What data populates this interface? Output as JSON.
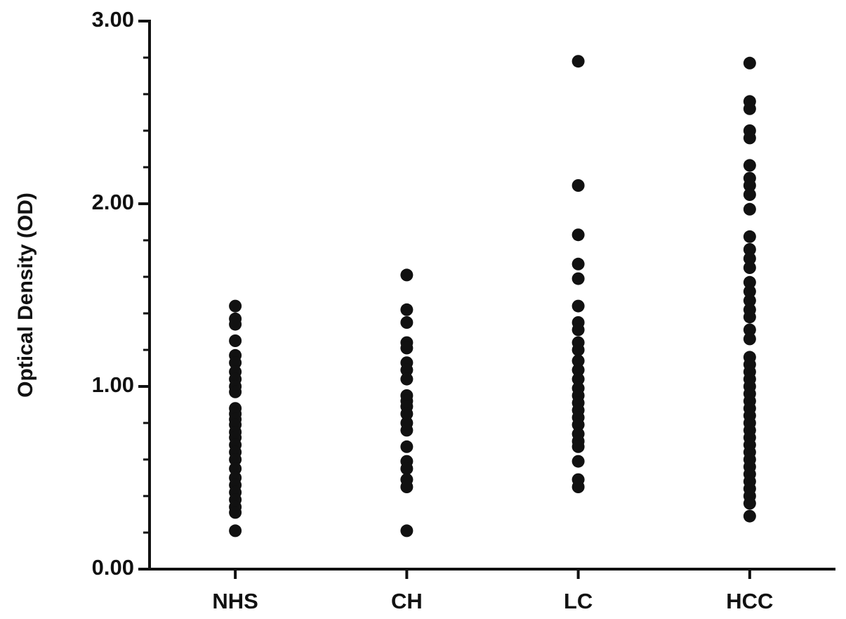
{
  "chart_data": {
    "type": "strip",
    "y_label": "Optical Density (OD)",
    "categories": [
      "NHS",
      "CH",
      "LC",
      "HCC"
    ],
    "values": [
      [
        1.44,
        1.37,
        1.34,
        1.25,
        1.17,
        1.13,
        1.08,
        1.04,
        1.0,
        0.97,
        0.88,
        0.85,
        0.82,
        0.79,
        0.75,
        0.72,
        0.68,
        0.64,
        0.6,
        0.55,
        0.5,
        0.46,
        0.42,
        0.38,
        0.34,
        0.31,
        0.21
      ],
      [
        1.61,
        1.42,
        1.35,
        1.24,
        1.21,
        1.13,
        1.09,
        1.04,
        0.95,
        0.92,
        0.89,
        0.85,
        0.8,
        0.76,
        0.67,
        0.59,
        0.55,
        0.49,
        0.45,
        0.21
      ],
      [
        2.78,
        2.1,
        1.83,
        1.67,
        1.59,
        1.44,
        1.35,
        1.31,
        1.24,
        1.2,
        1.14,
        1.09,
        1.04,
        0.99,
        0.95,
        0.91,
        0.87,
        0.83,
        0.79,
        0.74,
        0.7,
        0.67,
        0.59,
        0.49,
        0.45
      ],
      [
        2.77,
        2.56,
        2.52,
        2.4,
        2.36,
        2.21,
        2.14,
        2.1,
        2.05,
        1.97,
        1.82,
        1.75,
        1.7,
        1.65,
        1.57,
        1.52,
        1.47,
        1.42,
        1.38,
        1.31,
        1.26,
        1.16,
        1.12,
        1.08,
        1.04,
        1.0,
        0.96,
        0.92,
        0.88,
        0.84,
        0.8,
        0.76,
        0.72,
        0.68,
        0.64,
        0.6,
        0.56,
        0.52,
        0.48,
        0.44,
        0.4,
        0.36,
        0.29
      ]
    ],
    "color": "#111111",
    "ylim": [
      0,
      3
    ],
    "yticks": [
      {
        "value": 0,
        "label": "0.00"
      },
      {
        "value": 1,
        "label": "1.00"
      },
      {
        "value": 2,
        "label": "2.00"
      },
      {
        "value": 3,
        "label": "3.00"
      }
    ],
    "minor_yticks": [
      0.2,
      0.4,
      0.6,
      0.8,
      1.2,
      1.4,
      1.6,
      1.8,
      2.2,
      2.4,
      2.6,
      2.8
    ]
  }
}
